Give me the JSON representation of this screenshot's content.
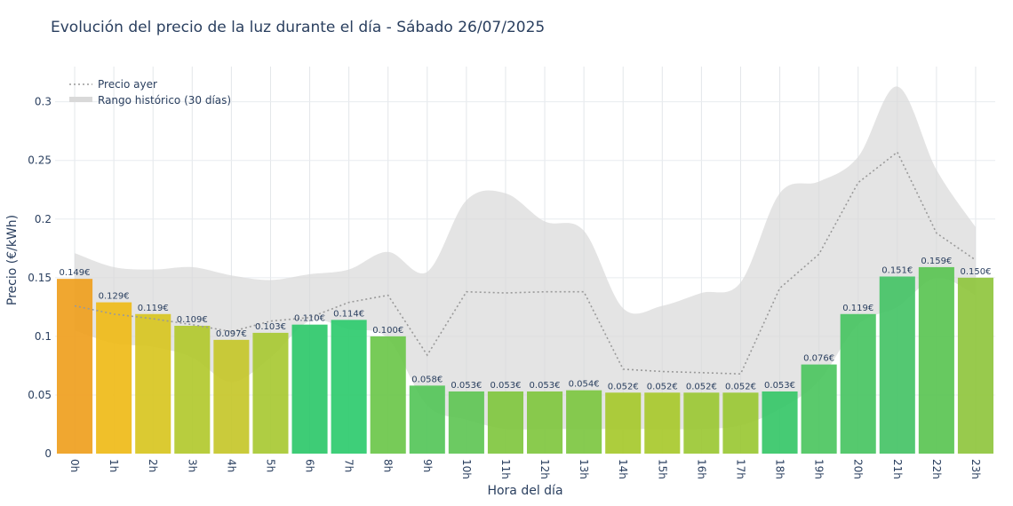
{
  "chart_data": {
    "type": "bar",
    "title": "Evolución del precio de la luz durante el día - Sábado 26/07/2025",
    "xlabel": "Hora del día",
    "ylabel": "Precio (€/kWh)",
    "ylim": [
      0,
      0.33
    ],
    "yticks": [
      0,
      0.05,
      0.1,
      0.15,
      0.2,
      0.25,
      0.3
    ],
    "ytick_labels": [
      "0",
      "0.05",
      "0.1",
      "0.15",
      "0.2",
      "0.25",
      "0.3"
    ],
    "grid": true,
    "legend_position": "top-left",
    "categories": [
      "0h",
      "1h",
      "2h",
      "3h",
      "4h",
      "5h",
      "6h",
      "7h",
      "8h",
      "9h",
      "10h",
      "11h",
      "12h",
      "13h",
      "14h",
      "15h",
      "16h",
      "17h",
      "18h",
      "19h",
      "20h",
      "21h",
      "22h",
      "23h"
    ],
    "values": [
      0.149,
      0.129,
      0.119,
      0.109,
      0.097,
      0.103,
      0.11,
      0.114,
      0.1,
      0.058,
      0.053,
      0.053,
      0.053,
      0.054,
      0.052,
      0.052,
      0.052,
      0.052,
      0.053,
      0.076,
      0.119,
      0.151,
      0.159,
      0.15
    ],
    "value_labels": [
      "0.149€",
      "0.129€",
      "0.119€",
      "0.109€",
      "0.097€",
      "0.103€",
      "0.110€",
      "0.114€",
      "0.100€",
      "0.058€",
      "0.053€",
      "0.053€",
      "0.053€",
      "0.054€",
      "0.052€",
      "0.052€",
      "0.052€",
      "0.052€",
      "0.053€",
      "0.076€",
      "0.119€",
      "0.151€",
      "0.159€",
      "0.150€"
    ],
    "bar_colors": [
      "#ef9f1e",
      "#efbb18",
      "#d8c521",
      "#b2c92e",
      "#c6c72a",
      "#a8c933",
      "#2ec86a",
      "#2ecb6e",
      "#6bc74a",
      "#55c659",
      "#5fc555",
      "#80c73f",
      "#80c73f",
      "#7dc741",
      "#a6c92d",
      "#a8c92d",
      "#9bc834",
      "#9ac834",
      "#36c768",
      "#4cc65f",
      "#48c462",
      "#45c366",
      "#5ac453",
      "#8fc63e"
    ],
    "yesterday": {
      "name": "Precio ayer",
      "color": "#9a9a9a",
      "values": [
        0.126,
        0.119,
        0.115,
        0.11,
        0.104,
        0.113,
        0.116,
        0.129,
        0.135,
        0.084,
        0.138,
        0.137,
        0.138,
        0.138,
        0.072,
        0.07,
        0.069,
        0.068,
        0.141,
        0.17,
        0.231,
        0.257,
        0.188,
        0.165
      ]
    },
    "historical_range": {
      "name": "Rango histórico (30 días)",
      "color": "#d9d9d9",
      "max": [
        0.171,
        0.159,
        0.157,
        0.159,
        0.152,
        0.148,
        0.153,
        0.157,
        0.172,
        0.155,
        0.216,
        0.222,
        0.198,
        0.19,
        0.124,
        0.126,
        0.137,
        0.146,
        0.222,
        0.232,
        0.253,
        0.313,
        0.242,
        0.193
      ],
      "min": [
        0.105,
        0.094,
        0.091,
        0.082,
        0.061,
        0.082,
        0.113,
        0.106,
        0.098,
        0.041,
        0.029,
        0.021,
        0.021,
        0.021,
        0.021,
        0.021,
        0.021,
        0.024,
        0.038,
        0.062,
        0.11,
        0.125,
        0.15,
        0.135
      ]
    }
  }
}
